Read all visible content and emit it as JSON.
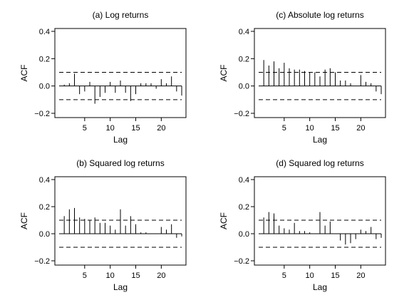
{
  "chart_data": [
    {
      "type": "bar",
      "subtype": "acf-stem",
      "title": "(a) Log returns",
      "xlabel": "Lag",
      "ylabel": "ACF",
      "xlim": [
        0,
        24
      ],
      "ylim": [
        -0.2,
        0.4
      ],
      "xticks": [
        "5",
        "10",
        "15",
        "20"
      ],
      "yticks": [
        "0.4",
        "0.2",
        "0.0",
        "−0.2"
      ],
      "confidence_band": [
        -0.1,
        0.1
      ],
      "x": [
        1,
        2,
        3,
        4,
        5,
        6,
        7,
        8,
        9,
        10,
        11,
        12,
        13,
        14,
        15,
        16,
        17,
        18,
        19,
        20,
        21,
        22,
        23,
        24
      ],
      "values": [
        0.01,
        0.02,
        0.09,
        -0.06,
        -0.04,
        0.03,
        -0.13,
        -0.08,
        -0.05,
        0.03,
        -0.05,
        0.04,
        -0.05,
        -0.11,
        -0.06,
        0.02,
        0.02,
        0.02,
        -0.02,
        0.05,
        0.02,
        0.07,
        -0.04,
        -0.07
      ],
      "grid": false,
      "legend": "none"
    },
    {
      "type": "bar",
      "subtype": "acf-stem",
      "title": "(c) Absolute log returns",
      "xlabel": "Lag",
      "ylabel": "ACF",
      "xlim": [
        0,
        24
      ],
      "ylim": [
        -0.2,
        0.4
      ],
      "xticks": [
        "5",
        "10",
        "15",
        "20"
      ],
      "yticks": [
        "0.4",
        "0.2",
        "0.0",
        "−0.2"
      ],
      "confidence_band": [
        -0.1,
        0.1
      ],
      "x": [
        1,
        2,
        3,
        4,
        5,
        6,
        7,
        8,
        9,
        10,
        11,
        12,
        13,
        14,
        15,
        16,
        17,
        18,
        19,
        20,
        21,
        22,
        23,
        24
      ],
      "values": [
        0.19,
        0.15,
        0.18,
        0.13,
        0.17,
        0.13,
        0.12,
        0.12,
        0.11,
        0.1,
        0.1,
        0.07,
        0.12,
        0.13,
        0.1,
        0.04,
        0.04,
        0.02,
        0.0,
        0.08,
        0.03,
        0.02,
        -0.04,
        -0.06
      ],
      "grid": false,
      "legend": "none"
    },
    {
      "type": "bar",
      "subtype": "acf-stem",
      "title": "(b) Squared log returns",
      "xlabel": "Lag",
      "ylabel": "ACF",
      "xlim": [
        0,
        24
      ],
      "ylim": [
        -0.2,
        0.4
      ],
      "xticks": [
        "5",
        "10",
        "15",
        "20"
      ],
      "yticks": [
        "0.4",
        "0.2",
        "0.0",
        "−0.2"
      ],
      "confidence_band": [
        -0.1,
        0.1
      ],
      "x": [
        1,
        2,
        3,
        4,
        5,
        6,
        7,
        8,
        9,
        10,
        11,
        12,
        13,
        14,
        15,
        16,
        17,
        18,
        19,
        20,
        21,
        22,
        23,
        24
      ],
      "values": [
        0.13,
        0.18,
        0.19,
        0.12,
        0.11,
        0.1,
        0.12,
        0.08,
        0.08,
        0.06,
        0.03,
        0.18,
        0.06,
        0.13,
        0.07,
        0.01,
        0.01,
        0.0,
        0.0,
        0.05,
        0.03,
        0.07,
        -0.03,
        -0.02
      ],
      "grid": false,
      "legend": "none"
    },
    {
      "type": "bar",
      "subtype": "acf-stem",
      "title": "(d) Squared log returns",
      "xlabel": "Lag",
      "ylabel": "ACF",
      "xlim": [
        0,
        24
      ],
      "ylim": [
        -0.2,
        0.4
      ],
      "xticks": [
        "5",
        "10",
        "15",
        "20"
      ],
      "yticks": [
        "0.4",
        "0.2",
        "0.0",
        "−0.2"
      ],
      "confidence_band": [
        -0.1,
        0.1
      ],
      "x": [
        1,
        2,
        3,
        4,
        5,
        6,
        7,
        8,
        9,
        10,
        11,
        12,
        13,
        14,
        15,
        16,
        17,
        18,
        19,
        20,
        21,
        22,
        23,
        24
      ],
      "values": [
        0.12,
        0.16,
        0.15,
        0.06,
        0.04,
        0.03,
        0.08,
        0.02,
        0.02,
        0.01,
        0.0,
        0.16,
        0.06,
        0.09,
        0.0,
        -0.05,
        -0.08,
        -0.07,
        -0.04,
        0.03,
        0.02,
        0.05,
        -0.04,
        -0.03
      ],
      "grid": false,
      "legend": "none"
    }
  ]
}
